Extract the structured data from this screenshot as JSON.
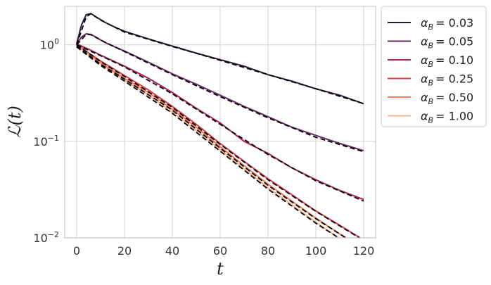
{
  "chart_data": {
    "type": "line",
    "xlabel": "t",
    "ylabel": "ℒ(t)",
    "xscale": "linear",
    "yscale": "log",
    "xlim": [
      -5,
      125
    ],
    "ylim": [
      0.01,
      2.5
    ],
    "grid": true,
    "legend_position": "outside-right",
    "x_ticks": [
      {
        "value": 0,
        "label": "0"
      },
      {
        "value": 20,
        "label": "20"
      },
      {
        "value": 40,
        "label": "40"
      },
      {
        "value": 60,
        "label": "60"
      },
      {
        "value": 80,
        "label": "80"
      },
      {
        "value": 100,
        "label": "100"
      },
      {
        "value": 120,
        "label": "120"
      }
    ],
    "y_ticks": [
      {
        "value": 1,
        "base": "10",
        "exp": "0"
      },
      {
        "value": 0.1,
        "base": "10",
        "exp": "−1"
      },
      {
        "value": 0.01,
        "base": "10",
        "exp": "−2"
      }
    ],
    "series": [
      {
        "name": "α_B = 0.03",
        "label_sym": "α",
        "label_sub": "B",
        "label_val": "= 0.03",
        "color": "#2e1a3a",
        "x": [
          0,
          2,
          4,
          6,
          8,
          12,
          16,
          20,
          30,
          40,
          50,
          60,
          70,
          80,
          90,
          100,
          110,
          120
        ],
        "y": [
          1.02,
          1.6,
          2.05,
          2.1,
          1.95,
          1.7,
          1.52,
          1.38,
          1.15,
          0.97,
          0.82,
          0.7,
          0.6,
          0.49,
          0.42,
          0.35,
          0.3,
          0.245
        ]
      },
      {
        "name": "α_B = 0.05",
        "label_sym": "α",
        "label_sub": "B",
        "label_val": "= 0.05",
        "color": "#6b2a67",
        "x": [
          0,
          2,
          4,
          6,
          8,
          12,
          16,
          20,
          30,
          40,
          50,
          60,
          70,
          80,
          90,
          100,
          110,
          120
        ],
        "y": [
          1.02,
          1.2,
          1.3,
          1.28,
          1.2,
          1.05,
          0.95,
          0.86,
          0.66,
          0.5,
          0.39,
          0.3,
          0.23,
          0.18,
          0.14,
          0.115,
          0.095,
          0.08
        ]
      },
      {
        "name": "α_B = 0.10",
        "label_sym": "α",
        "label_sub": "B",
        "label_val": "= 0.10",
        "color": "#a8205e",
        "x": [
          0,
          5,
          10,
          20,
          30,
          40,
          50,
          60,
          70,
          80,
          90,
          100,
          110,
          120
        ],
        "y": [
          1.02,
          0.9,
          0.78,
          0.6,
          0.45,
          0.32,
          0.22,
          0.155,
          0.1,
          0.075,
          0.053,
          0.04,
          0.031,
          0.025
        ]
      },
      {
        "name": "α_B = 0.25",
        "label_sym": "α",
        "label_sub": "B",
        "label_val": "= 0.25",
        "color": "#dc3b4b",
        "x": [
          0,
          5,
          10,
          20,
          30,
          40,
          50,
          60,
          70,
          80,
          90,
          100,
          110,
          120
        ],
        "y": [
          1.02,
          0.82,
          0.68,
          0.48,
          0.34,
          0.23,
          0.15,
          0.095,
          0.062,
          0.041,
          0.028,
          0.019,
          0.0135,
          0.0095
        ]
      },
      {
        "name": "α_B = 0.50",
        "label_sym": "α",
        "label_sub": "B",
        "label_val": "= 0.50",
        "color": "#f27b5c",
        "x": [
          0,
          5,
          10,
          20,
          30,
          40,
          50,
          60,
          70,
          80,
          90,
          100,
          110,
          120
        ],
        "y": [
          1.0,
          0.8,
          0.65,
          0.45,
          0.32,
          0.215,
          0.14,
          0.088,
          0.056,
          0.036,
          0.024,
          0.016,
          0.011,
          0.0078
        ]
      },
      {
        "name": "α_B = 1.00",
        "label_sym": "α",
        "label_sub": "B",
        "label_val": "= 1.00",
        "color": "#f8b48c",
        "x": [
          0,
          5,
          10,
          20,
          30,
          40,
          50,
          60,
          70,
          80,
          90,
          100,
          110,
          120
        ],
        "y": [
          0.98,
          0.78,
          0.63,
          0.43,
          0.3,
          0.2,
          0.13,
          0.082,
          0.052,
          0.033,
          0.022,
          0.0145,
          0.0098,
          0.007
        ]
      }
    ],
    "fit_lines_color": "#000000",
    "fit_lines": [
      {
        "x": [
          0,
          4,
          6,
          10,
          20,
          40,
          60,
          80,
          100,
          120
        ],
        "y": [
          1.0,
          1.95,
          2.1,
          1.8,
          1.35,
          0.96,
          0.69,
          0.49,
          0.35,
          0.245
        ]
      },
      {
        "x": [
          0,
          4,
          6,
          10,
          20,
          40,
          60,
          80,
          100,
          120
        ],
        "y": [
          1.0,
          1.28,
          1.27,
          1.12,
          0.85,
          0.49,
          0.29,
          0.175,
          0.11,
          0.078
        ]
      },
      {
        "x": [
          0,
          10,
          20,
          40,
          60,
          80,
          100,
          120
        ],
        "y": [
          1.0,
          0.77,
          0.59,
          0.31,
          0.15,
          0.073,
          0.039,
          0.024
        ]
      },
      {
        "x": [
          0,
          10,
          20,
          40,
          60,
          80,
          100,
          120
        ],
        "y": [
          1.0,
          0.67,
          0.47,
          0.225,
          0.093,
          0.04,
          0.0188,
          0.0094
        ]
      },
      {
        "x": [
          0,
          10,
          20,
          40,
          60,
          80,
          100,
          120
        ],
        "y": [
          0.97,
          0.63,
          0.44,
          0.21,
          0.085,
          0.035,
          0.0158,
          0.0076
        ]
      },
      {
        "x": [
          0,
          10,
          20,
          40,
          60,
          80,
          100,
          120
        ],
        "y": [
          0.95,
          0.61,
          0.42,
          0.195,
          0.079,
          0.032,
          0.0142,
          0.0068
        ]
      }
    ]
  }
}
